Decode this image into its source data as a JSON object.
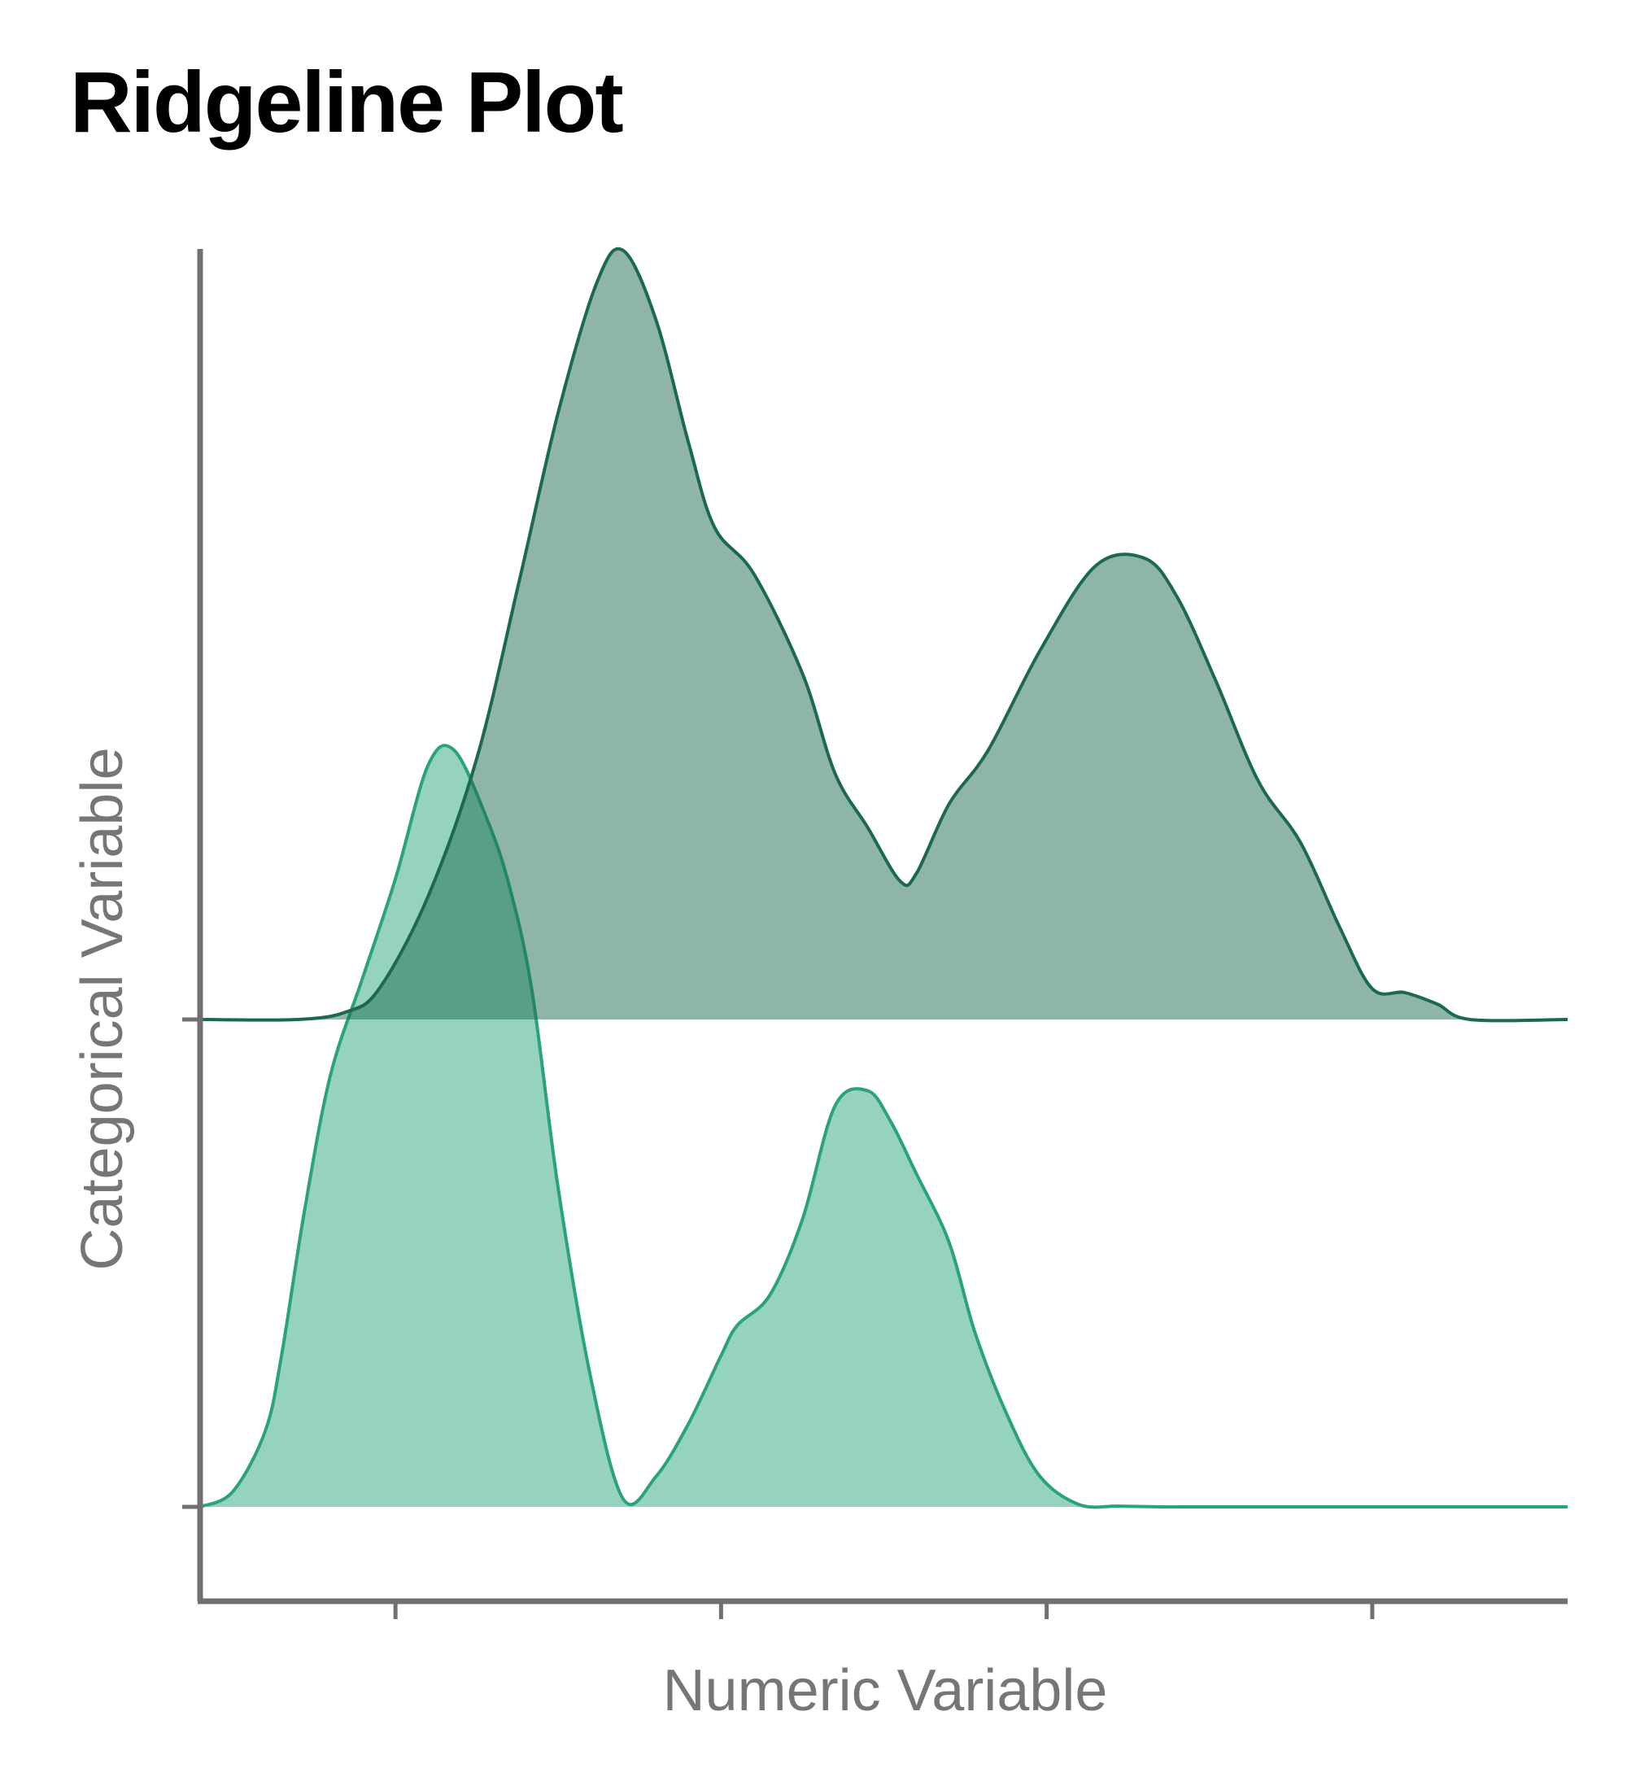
{
  "chart_data": {
    "type": "ridgeline",
    "title": "Ridgeline Plot",
    "xlabel": "Numeric Variable",
    "ylabel": "Categorical Variable",
    "xlim": [
      0,
      4.2
    ],
    "x_ticks": [
      0.6,
      1.6,
      2.6,
      3.6
    ],
    "x_tick_labels": [
      "",
      "",
      "",
      ""
    ],
    "y_tick_labels": [
      "",
      ""
    ],
    "density_max": 1.0,
    "colors": {
      "axis": "#707070",
      "lower_fill": "#2ba77a",
      "lower_line": "#2aa378",
      "upper_fill": "#1d6b4f",
      "upper_line": "#1c6a4e"
    },
    "series": [
      {
        "x": [
          0.0,
          0.1,
          0.2,
          0.25,
          0.32,
          0.4,
          0.5,
          0.6,
          0.7,
          0.78,
          0.88,
          0.95,
          1.02,
          1.1,
          1.2,
          1.3,
          1.4,
          1.5,
          1.6,
          1.65,
          1.75,
          1.85,
          1.95,
          2.05,
          2.12,
          2.2,
          2.3,
          2.38,
          2.48,
          2.58,
          2.7,
          2.82,
          2.95,
          3.05,
          3.15,
          3.3,
          3.5,
          3.7,
          3.9,
          4.2
        ],
        "density": [
          0.0,
          0.02,
          0.1,
          0.2,
          0.39,
          0.57,
          0.7,
          0.83,
          0.98,
          1.0,
          0.91,
          0.82,
          0.68,
          0.42,
          0.17,
          0.01,
          0.04,
          0.11,
          0.2,
          0.24,
          0.28,
          0.38,
          0.53,
          0.55,
          0.51,
          0.44,
          0.35,
          0.23,
          0.12,
          0.04,
          0.003,
          0.001,
          0.0,
          0.0,
          0.0,
          0.0,
          0.0,
          0.0,
          0.0,
          0.0
        ]
      },
      {
        "x": [
          0.0,
          0.3,
          0.45,
          0.55,
          0.7,
          0.85,
          0.98,
          1.1,
          1.22,
          1.3,
          1.4,
          1.5,
          1.58,
          1.7,
          1.85,
          1.95,
          2.05,
          2.15,
          2.2,
          2.3,
          2.42,
          2.58,
          2.75,
          2.9,
          3.0,
          3.12,
          3.25,
          3.38,
          3.5,
          3.6,
          3.7,
          3.8,
          3.9,
          4.2
        ],
        "density": [
          0.0,
          0.0,
          0.01,
          0.04,
          0.16,
          0.34,
          0.57,
          0.79,
          0.96,
          1.0,
          0.91,
          0.75,
          0.64,
          0.58,
          0.45,
          0.32,
          0.25,
          0.18,
          0.19,
          0.28,
          0.35,
          0.48,
          0.59,
          0.6,
          0.55,
          0.44,
          0.31,
          0.23,
          0.12,
          0.04,
          0.035,
          0.02,
          0.0,
          0.0
        ]
      }
    ]
  }
}
